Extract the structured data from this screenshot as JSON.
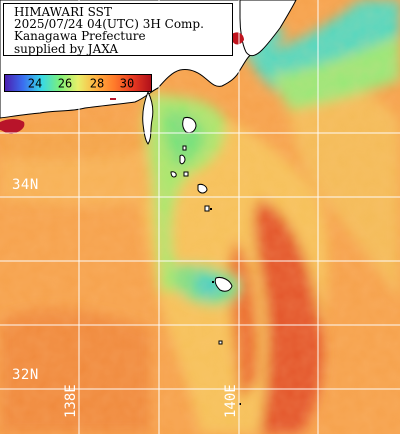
{
  "title_lines": [
    "HIMAWARI SST",
    "2025/07/24 04(UTC) 3H Comp.",
    "Kanagawa Prefecture",
    "supplied by JAXA"
  ],
  "colorbar": {
    "ticks": [
      "24",
      "26",
      "28",
      "30"
    ],
    "stops": [
      "#4b1fb0",
      "#3a6ff0",
      "#38d8e8",
      "#7cf07a",
      "#e8f06a",
      "#ffb040",
      "#ff7a2a",
      "#e83a22",
      "#b0101a"
    ]
  },
  "grid_labels": {
    "lat": [
      "34N",
      "32N"
    ],
    "lon": [
      "138E",
      "140E"
    ]
  },
  "colors": {
    "land": "#ffffff",
    "grid": "#ffffff",
    "sea_warm": "#f7a04a",
    "sea_hot": "#e2562a",
    "sea_cool": "#9cf07a",
    "sea_cold": "#3ad0d8",
    "no_data": "#b8142a"
  }
}
